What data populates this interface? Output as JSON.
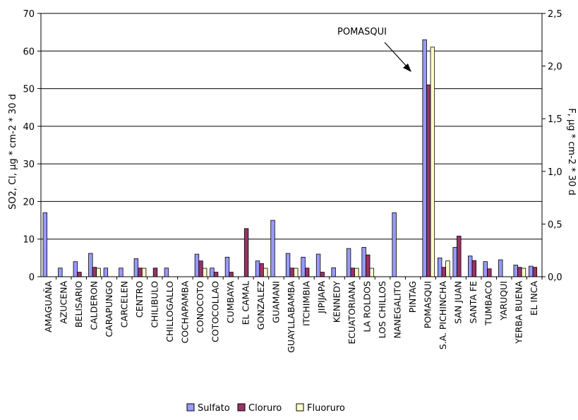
{
  "chart_data": {
    "type": "bar",
    "title": "",
    "ylabel": "SO2, Cl, µg * cm-2 * 30 d",
    "y2label": "F, µg * cm-2 * 30 d",
    "ylim": [
      0,
      70
    ],
    "y2lim": [
      0,
      2.5
    ],
    "yticks": [
      "0",
      "10",
      "20",
      "30",
      "40",
      "50",
      "60",
      "70"
    ],
    "y2ticks": [
      "0,0",
      "0,5",
      "1,0",
      "1,5",
      "2,0",
      "2,5"
    ],
    "grid": true,
    "legend_position": "bottom",
    "categories": [
      "AMAGUAÑA",
      "AZUCENA",
      "BELISARIO",
      "CALDERON",
      "CARAPUNGO",
      "CARCELEN",
      "CENTRO",
      "CHILIBULO",
      "CHILLOGALLO",
      "COCHAPAMBA",
      "CONOCOTO",
      "COTOCOLLAO",
      "CUMBAYA",
      "EL CAMAL",
      "GONZALEZ",
      "GUAMANI",
      "GUAYLLABAMBA",
      "ITCHIMBIA",
      "JIPIJAPA",
      "KENNEDY",
      "ECUATORIANA",
      "LA ROLDOS",
      "LOS CHILLOS",
      "NANEGALITO",
      "PINTAG",
      "POMASQUI",
      "S.A. PICHINCHA",
      "SAN JUAN",
      "SANTA FE",
      "TUMBACO",
      "YARUQUI",
      "YERBA BUENA",
      "EL INCA"
    ],
    "series": [
      {
        "name": "Sulfato",
        "color": "#9999ff",
        "axis": "left",
        "values": [
          17,
          2.3,
          4,
          6.2,
          2.3,
          2.3,
          4.8,
          0,
          2.3,
          0,
          6,
          2.3,
          5.2,
          0,
          4.2,
          15,
          6.2,
          5.2,
          6,
          2.4,
          7.5,
          7.8,
          0,
          17,
          0,
          63,
          5,
          7.8,
          5.5,
          4,
          4.5,
          3.1,
          2.8
        ]
      },
      {
        "name": "Cloruro",
        "color": "#993366",
        "axis": "left",
        "values": [
          0,
          0,
          1.2,
          2.5,
          0,
          0,
          2.3,
          2.3,
          0,
          0,
          4.2,
          1.2,
          1.2,
          12.8,
          3.5,
          0,
          2.3,
          2.3,
          1.2,
          0,
          2.3,
          5.8,
          0,
          0,
          0,
          51,
          2.5,
          10.8,
          4.3,
          2.1,
          0,
          2.5,
          2.5
        ]
      },
      {
        "name": "Fluoruro",
        "color": "#ffffcc",
        "axis": "right",
        "values": [
          0,
          0,
          0,
          0.08,
          0,
          0,
          0.08,
          0,
          0,
          0,
          0.08,
          0,
          0,
          0,
          0.08,
          0,
          0.08,
          0,
          0,
          0,
          0.08,
          0.08,
          0,
          0,
          0,
          2.18,
          0.15,
          0,
          0,
          0,
          0,
          0.08,
          0
        ]
      }
    ],
    "annotations": [
      {
        "text": "POMASQUI",
        "target": "POMASQUI"
      }
    ]
  }
}
